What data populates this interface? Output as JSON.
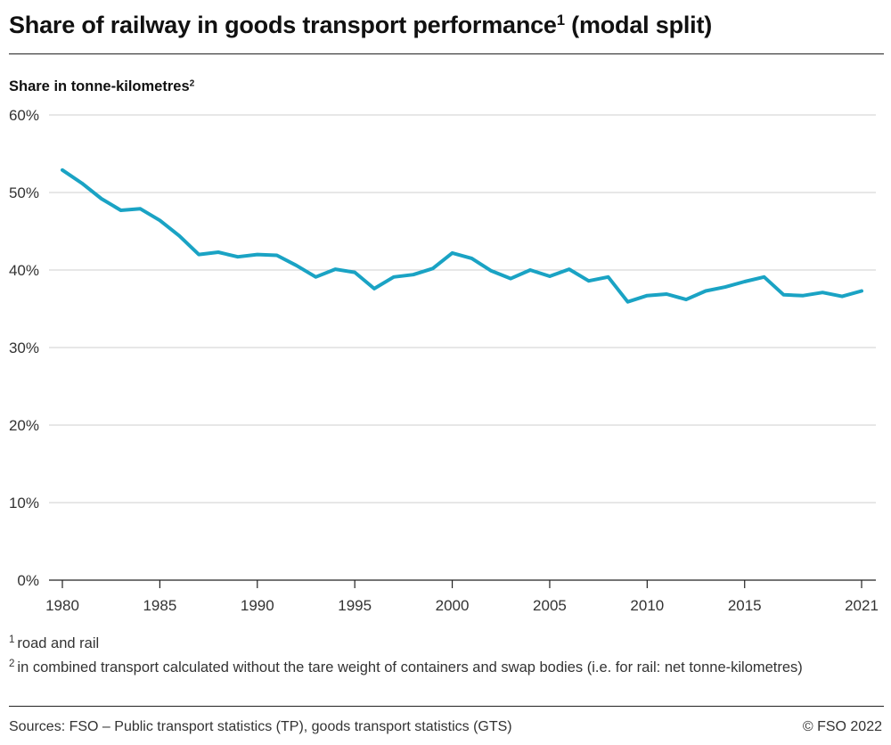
{
  "header": {
    "title": "Share of railway in goods transport performance",
    "title_sup": "1",
    "title_suffix": " (modal split)"
  },
  "footnotes": [
    {
      "marker": "1",
      "text": "road and rail"
    },
    {
      "marker": "2",
      "text": "in combined transport calculated without the tare weight of containers and swap bodies (i.e. for rail: net tonne-kilometres)"
    }
  ],
  "footer": {
    "sources": "Sources: FSO – Public transport statistics (TP), goods transport statistics (GTS)",
    "copyright": "© FSO 2022"
  },
  "chart_data": {
    "type": "line",
    "title": "Share of railway in goods transport performance (modal split)",
    "ylabel": "Share in tonne-kilometres",
    "ylabel_sup": "2",
    "xlabel": "",
    "ylim": [
      0,
      60
    ],
    "xlim": [
      1980,
      2021
    ],
    "yticks": [
      {
        "value": 0,
        "label": "0%"
      },
      {
        "value": 10,
        "label": "10%"
      },
      {
        "value": 20,
        "label": "20%"
      },
      {
        "value": 30,
        "label": "30%"
      },
      {
        "value": 40,
        "label": "40%"
      },
      {
        "value": 50,
        "label": "50%"
      },
      {
        "value": 60,
        "label": "60%"
      }
    ],
    "xticks": [
      {
        "value": 1980,
        "label": "1980"
      },
      {
        "value": 1985,
        "label": "1985"
      },
      {
        "value": 1990,
        "label": "1990"
      },
      {
        "value": 1995,
        "label": "1995"
      },
      {
        "value": 2000,
        "label": "2000"
      },
      {
        "value": 2005,
        "label": "2005"
      },
      {
        "value": 2010,
        "label": "2010"
      },
      {
        "value": 2015,
        "label": "2015"
      },
      {
        "value": 2021,
        "label": "2021"
      }
    ],
    "grid": true,
    "line_color": "#1aa3c4",
    "series": [
      {
        "x": [
          1980,
          1981,
          1982,
          1983,
          1984,
          1985,
          1986,
          1987,
          1988,
          1989,
          1990,
          1991,
          1992,
          1993,
          1994,
          1995,
          1996,
          1997,
          1998,
          1999,
          2000,
          2001,
          2002,
          2003,
          2004,
          2005,
          2006,
          2007,
          2008,
          2009,
          2010,
          2011,
          2012,
          2013,
          2014,
          2015,
          2016,
          2017,
          2018,
          2019,
          2020,
          2021
        ],
        "values": [
          52.9,
          51.2,
          49.2,
          47.7,
          47.9,
          46.4,
          44.4,
          42.0,
          42.3,
          41.7,
          42.0,
          41.9,
          40.6,
          39.1,
          40.1,
          39.7,
          37.6,
          39.1,
          39.4,
          40.2,
          42.2,
          41.5,
          39.9,
          38.9,
          40.0,
          39.2,
          40.1,
          38.6,
          39.1,
          35.9,
          36.7,
          36.9,
          36.2,
          37.3,
          37.8,
          38.5,
          39.1,
          36.8,
          36.7,
          37.1,
          36.6,
          37.3
        ]
      }
    ]
  }
}
